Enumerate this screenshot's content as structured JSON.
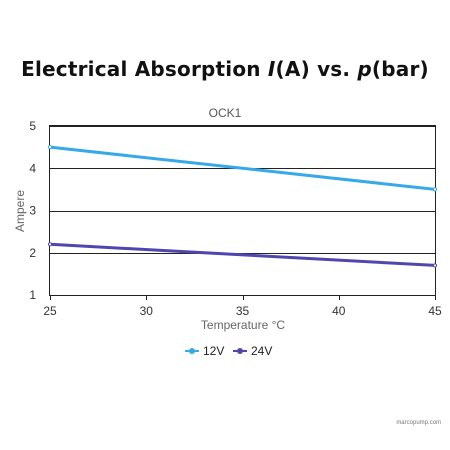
{
  "header": {
    "title_parts": [
      "Electrical Absorption ",
      "I",
      "(A) vs. ",
      "p",
      "(bar)"
    ]
  },
  "chart_data": {
    "type": "line",
    "title": "OCK1",
    "xlabel": "Temperature °C",
    "ylabel": "Ampere",
    "x": [
      25,
      45
    ],
    "xlim": [
      25,
      45
    ],
    "ylim": [
      1,
      5
    ],
    "xticks": [
      "25",
      "30",
      "35",
      "40",
      "45"
    ],
    "yticks": [
      "1",
      "2",
      "3",
      "4",
      "5"
    ],
    "grid": "horizontal",
    "legend_position": "bottom",
    "series": [
      {
        "name": "12V",
        "values": [
          4.5,
          3.5
        ],
        "color": "#36a9e8"
      },
      {
        "name": "24V",
        "values": [
          2.2,
          1.7
        ],
        "color": "#5046b0"
      }
    ]
  },
  "footer": {
    "watermark": "marcopump.com"
  }
}
